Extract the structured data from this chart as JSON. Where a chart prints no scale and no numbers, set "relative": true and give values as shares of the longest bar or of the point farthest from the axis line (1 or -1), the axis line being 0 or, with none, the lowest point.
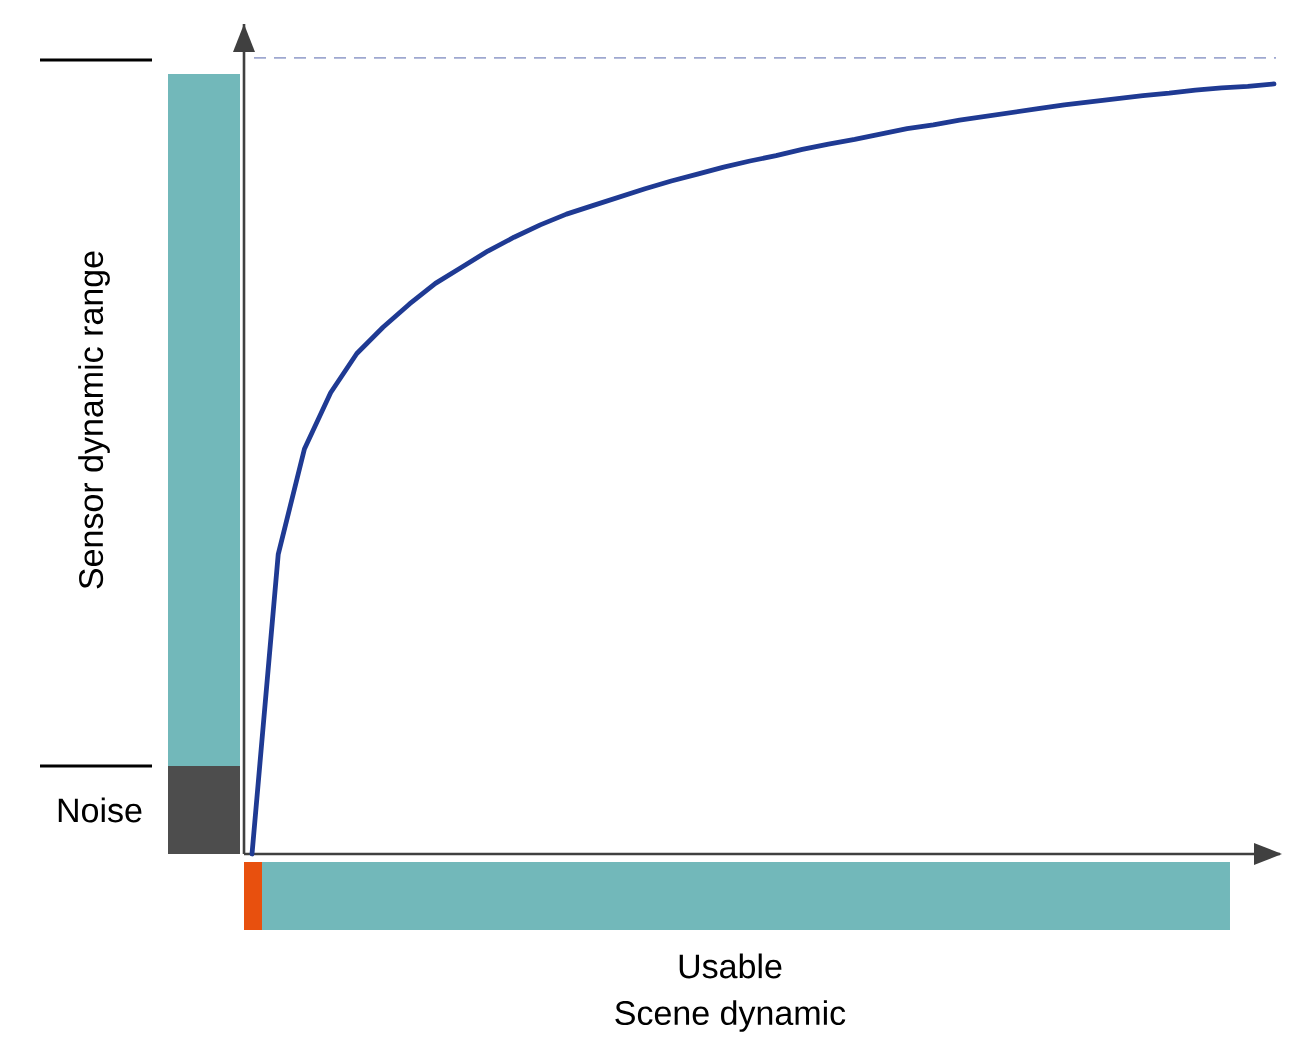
{
  "chart_data": {
    "type": "line",
    "relative": true,
    "ylabel": "Sensor dynamic range",
    "annotations": [
      "Noise",
      "Usable",
      "Scene dynamic"
    ],
    "categories": [
      null,
      null,
      null,
      null,
      null,
      null,
      null,
      null,
      null,
      null,
      null,
      null,
      null,
      null,
      null,
      null,
      null,
      null,
      null,
      null,
      null,
      null,
      null,
      null,
      null,
      null,
      null,
      null,
      null,
      null,
      null,
      null,
      null,
      null,
      null,
      null,
      null,
      null,
      null,
      null
    ],
    "values": [
      0.0,
      0.389,
      0.526,
      0.599,
      0.65,
      0.684,
      0.714,
      0.741,
      0.762,
      0.783,
      0.801,
      0.817,
      0.831,
      0.842,
      0.853,
      0.864,
      0.874,
      0.883,
      0.892,
      0.9,
      0.907,
      0.915,
      0.922,
      0.928,
      0.935,
      0.942,
      0.947,
      0.953,
      0.958,
      0.963,
      0.968,
      0.973,
      0.977,
      0.981,
      0.985,
      0.988,
      0.992,
      0.995,
      0.997,
      1.0
    ],
    "color": "#1f3a93",
    "marker": "none",
    "line_style": "solid",
    "ref_lines": [
      {
        "axis": "y",
        "value": 1.034,
        "color": "#9fa8d0",
        "line_style": "dashed"
      }
    ]
  }
}
